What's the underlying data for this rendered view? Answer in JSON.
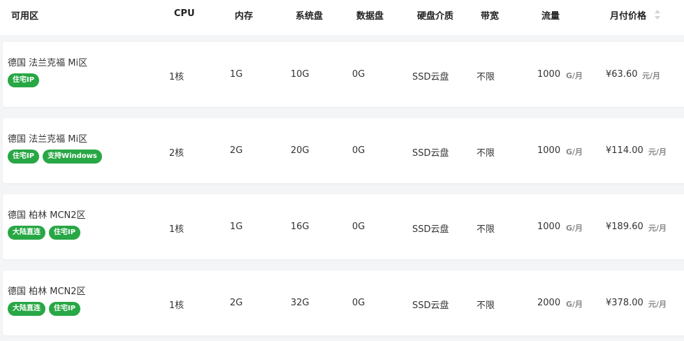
{
  "colors": {
    "tag": "#28a745",
    "background": "#f4f5f7"
  },
  "columns": [
    "可用区",
    "CPU",
    "内存",
    "系统盘",
    "数据盘",
    "硬盘介质",
    "带宽",
    "流量",
    "月付价格"
  ],
  "traffic_unit": "G/月",
  "price_unit": "元/月",
  "rows": [
    {
      "zone": "德国 法兰克福 Mi区",
      "tags": [
        "住宅IP"
      ],
      "cpu": "1核",
      "mem": "1G",
      "sys": "10G",
      "data": "0G",
      "media": "SSD云盘",
      "bw": "不限",
      "traffic": "1000",
      "price": "¥63.60"
    },
    {
      "zone": "德国 法兰克福 Mi区",
      "tags": [
        "住宅IP",
        "支持Windows"
      ],
      "cpu": "2核",
      "mem": "2G",
      "sys": "20G",
      "data": "0G",
      "media": "SSD云盘",
      "bw": "不限",
      "traffic": "1000",
      "price": "¥114.00"
    },
    {
      "zone": "德国 柏林 MCN2区",
      "tags": [
        "大陆直连",
        "住宅IP"
      ],
      "cpu": "1核",
      "mem": "1G",
      "sys": "16G",
      "data": "0G",
      "media": "SSD云盘",
      "bw": "不限",
      "traffic": "1000",
      "price": "¥189.60"
    },
    {
      "zone": "德国 柏林 MCN2区",
      "tags": [
        "大陆直连",
        "住宅IP"
      ],
      "cpu": "1核",
      "mem": "2G",
      "sys": "32G",
      "data": "0G",
      "media": "SSD云盘",
      "bw": "不限",
      "traffic": "2000",
      "price": "¥378.00"
    }
  ]
}
